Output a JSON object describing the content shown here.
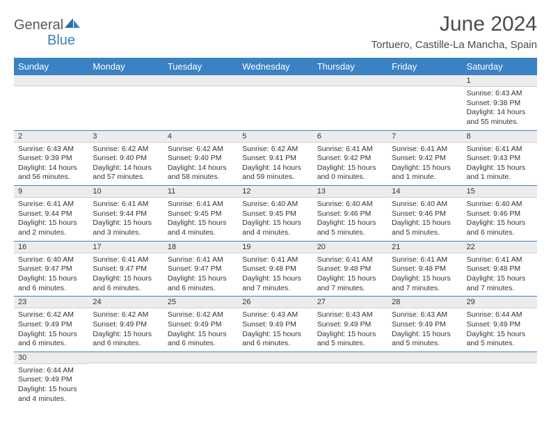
{
  "logo": {
    "text1": "General",
    "text2": "Blue"
  },
  "title": "June 2024",
  "location": "Tortuero, Castille-La Mancha, Spain",
  "colors": {
    "header_bg": "#3b82c4",
    "header_text": "#ffffff",
    "daynum_bg": "#ececec",
    "row_border": "#3b82c4",
    "text": "#333333",
    "logo_gray": "#5a5a5a",
    "logo_blue": "#3b7fb6"
  },
  "day_headers": [
    "Sunday",
    "Monday",
    "Tuesday",
    "Wednesday",
    "Thursday",
    "Friday",
    "Saturday"
  ],
  "weeks": [
    [
      {
        "n": "",
        "sr": "",
        "ss": "",
        "dl": ""
      },
      {
        "n": "",
        "sr": "",
        "ss": "",
        "dl": ""
      },
      {
        "n": "",
        "sr": "",
        "ss": "",
        "dl": ""
      },
      {
        "n": "",
        "sr": "",
        "ss": "",
        "dl": ""
      },
      {
        "n": "",
        "sr": "",
        "ss": "",
        "dl": ""
      },
      {
        "n": "",
        "sr": "",
        "ss": "",
        "dl": ""
      },
      {
        "n": "1",
        "sr": "Sunrise: 6:43 AM",
        "ss": "Sunset: 9:38 PM",
        "dl": "Daylight: 14 hours and 55 minutes."
      }
    ],
    [
      {
        "n": "2",
        "sr": "Sunrise: 6:43 AM",
        "ss": "Sunset: 9:39 PM",
        "dl": "Daylight: 14 hours and 56 minutes."
      },
      {
        "n": "3",
        "sr": "Sunrise: 6:42 AM",
        "ss": "Sunset: 9:40 PM",
        "dl": "Daylight: 14 hours and 57 minutes."
      },
      {
        "n": "4",
        "sr": "Sunrise: 6:42 AM",
        "ss": "Sunset: 9:40 PM",
        "dl": "Daylight: 14 hours and 58 minutes."
      },
      {
        "n": "5",
        "sr": "Sunrise: 6:42 AM",
        "ss": "Sunset: 9:41 PM",
        "dl": "Daylight: 14 hours and 59 minutes."
      },
      {
        "n": "6",
        "sr": "Sunrise: 6:41 AM",
        "ss": "Sunset: 9:42 PM",
        "dl": "Daylight: 15 hours and 0 minutes."
      },
      {
        "n": "7",
        "sr": "Sunrise: 6:41 AM",
        "ss": "Sunset: 9:42 PM",
        "dl": "Daylight: 15 hours and 1 minute."
      },
      {
        "n": "8",
        "sr": "Sunrise: 6:41 AM",
        "ss": "Sunset: 9:43 PM",
        "dl": "Daylight: 15 hours and 1 minute."
      }
    ],
    [
      {
        "n": "9",
        "sr": "Sunrise: 6:41 AM",
        "ss": "Sunset: 9:44 PM",
        "dl": "Daylight: 15 hours and 2 minutes."
      },
      {
        "n": "10",
        "sr": "Sunrise: 6:41 AM",
        "ss": "Sunset: 9:44 PM",
        "dl": "Daylight: 15 hours and 3 minutes."
      },
      {
        "n": "11",
        "sr": "Sunrise: 6:41 AM",
        "ss": "Sunset: 9:45 PM",
        "dl": "Daylight: 15 hours and 4 minutes."
      },
      {
        "n": "12",
        "sr": "Sunrise: 6:40 AM",
        "ss": "Sunset: 9:45 PM",
        "dl": "Daylight: 15 hours and 4 minutes."
      },
      {
        "n": "13",
        "sr": "Sunrise: 6:40 AM",
        "ss": "Sunset: 9:46 PM",
        "dl": "Daylight: 15 hours and 5 minutes."
      },
      {
        "n": "14",
        "sr": "Sunrise: 6:40 AM",
        "ss": "Sunset: 9:46 PM",
        "dl": "Daylight: 15 hours and 5 minutes."
      },
      {
        "n": "15",
        "sr": "Sunrise: 6:40 AM",
        "ss": "Sunset: 9:46 PM",
        "dl": "Daylight: 15 hours and 6 minutes."
      }
    ],
    [
      {
        "n": "16",
        "sr": "Sunrise: 6:40 AM",
        "ss": "Sunset: 9:47 PM",
        "dl": "Daylight: 15 hours and 6 minutes."
      },
      {
        "n": "17",
        "sr": "Sunrise: 6:41 AM",
        "ss": "Sunset: 9:47 PM",
        "dl": "Daylight: 15 hours and 6 minutes."
      },
      {
        "n": "18",
        "sr": "Sunrise: 6:41 AM",
        "ss": "Sunset: 9:47 PM",
        "dl": "Daylight: 15 hours and 6 minutes."
      },
      {
        "n": "19",
        "sr": "Sunrise: 6:41 AM",
        "ss": "Sunset: 9:48 PM",
        "dl": "Daylight: 15 hours and 7 minutes."
      },
      {
        "n": "20",
        "sr": "Sunrise: 6:41 AM",
        "ss": "Sunset: 9:48 PM",
        "dl": "Daylight: 15 hours and 7 minutes."
      },
      {
        "n": "21",
        "sr": "Sunrise: 6:41 AM",
        "ss": "Sunset: 9:48 PM",
        "dl": "Daylight: 15 hours and 7 minutes."
      },
      {
        "n": "22",
        "sr": "Sunrise: 6:41 AM",
        "ss": "Sunset: 9:48 PM",
        "dl": "Daylight: 15 hours and 7 minutes."
      }
    ],
    [
      {
        "n": "23",
        "sr": "Sunrise: 6:42 AM",
        "ss": "Sunset: 9:49 PM",
        "dl": "Daylight: 15 hours and 6 minutes."
      },
      {
        "n": "24",
        "sr": "Sunrise: 6:42 AM",
        "ss": "Sunset: 9:49 PM",
        "dl": "Daylight: 15 hours and 6 minutes."
      },
      {
        "n": "25",
        "sr": "Sunrise: 6:42 AM",
        "ss": "Sunset: 9:49 PM",
        "dl": "Daylight: 15 hours and 6 minutes."
      },
      {
        "n": "26",
        "sr": "Sunrise: 6:43 AM",
        "ss": "Sunset: 9:49 PM",
        "dl": "Daylight: 15 hours and 6 minutes."
      },
      {
        "n": "27",
        "sr": "Sunrise: 6:43 AM",
        "ss": "Sunset: 9:49 PM",
        "dl": "Daylight: 15 hours and 5 minutes."
      },
      {
        "n": "28",
        "sr": "Sunrise: 6:43 AM",
        "ss": "Sunset: 9:49 PM",
        "dl": "Daylight: 15 hours and 5 minutes."
      },
      {
        "n": "29",
        "sr": "Sunrise: 6:44 AM",
        "ss": "Sunset: 9:49 PM",
        "dl": "Daylight: 15 hours and 5 minutes."
      }
    ],
    [
      {
        "n": "30",
        "sr": "Sunrise: 6:44 AM",
        "ss": "Sunset: 9:49 PM",
        "dl": "Daylight: 15 hours and 4 minutes."
      },
      {
        "n": "",
        "sr": "",
        "ss": "",
        "dl": ""
      },
      {
        "n": "",
        "sr": "",
        "ss": "",
        "dl": ""
      },
      {
        "n": "",
        "sr": "",
        "ss": "",
        "dl": ""
      },
      {
        "n": "",
        "sr": "",
        "ss": "",
        "dl": ""
      },
      {
        "n": "",
        "sr": "",
        "ss": "",
        "dl": ""
      },
      {
        "n": "",
        "sr": "",
        "ss": "",
        "dl": ""
      }
    ]
  ]
}
